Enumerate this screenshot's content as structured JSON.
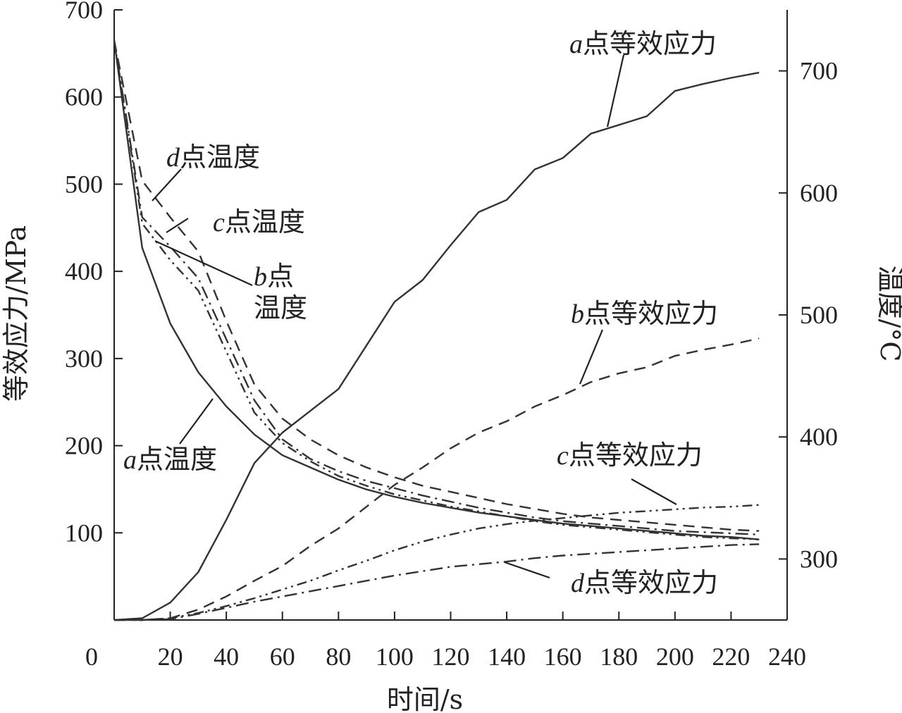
{
  "chart_data": {
    "type": "line",
    "xlabel": "时间/s",
    "ylabel_left": "等效应力/MPa",
    "ylabel_right": "温度/°C",
    "xlim": [
      0,
      240
    ],
    "ylim_left": [
      0,
      700
    ],
    "ylim_right": [
      250,
      750
    ],
    "x_ticks": [
      "0",
      "20",
      "40",
      "60",
      "80",
      "100",
      "120",
      "140",
      "160",
      "180",
      "200",
      "220",
      "240"
    ],
    "y_left_ticks": [
      "100",
      "200",
      "300",
      "400",
      "500",
      "600",
      "700"
    ],
    "y_right_ticks": [
      "300",
      "400",
      "500",
      "600",
      "700"
    ],
    "grid": false,
    "series": [
      {
        "name": "a点等效应力",
        "axis": "left",
        "style": "solid",
        "x": [
          0,
          10,
          20,
          30,
          40,
          50,
          60,
          70,
          80,
          90,
          100,
          110,
          120,
          130,
          140,
          150,
          160,
          170,
          180,
          190,
          200,
          210,
          220,
          230
        ],
        "y": [
          0,
          2,
          20,
          55,
          115,
          180,
          215,
          240,
          265,
          315,
          365,
          390,
          430,
          468,
          482,
          517,
          530,
          558,
          568,
          578,
          607,
          615,
          622,
          628
        ]
      },
      {
        "name": "b点等效应力",
        "axis": "left",
        "style": "dash",
        "x": [
          0,
          10,
          20,
          30,
          40,
          50,
          60,
          70,
          80,
          90,
          100,
          110,
          120,
          130,
          140,
          150,
          160,
          170,
          180,
          190,
          200,
          210,
          220,
          230
        ],
        "y": [
          0,
          0,
          2,
          12,
          27,
          45,
          62,
          85,
          105,
          130,
          155,
          175,
          197,
          215,
          228,
          245,
          258,
          273,
          283,
          290,
          303,
          310,
          316,
          323
        ]
      },
      {
        "name": "c点等效应力",
        "axis": "left",
        "style": "dot-dot-dash",
        "x": [
          0,
          10,
          20,
          30,
          40,
          50,
          60,
          70,
          80,
          90,
          100,
          110,
          120,
          130,
          140,
          150,
          160,
          170,
          180,
          190,
          200,
          210,
          220,
          230
        ],
        "y": [
          0,
          0,
          2,
          8,
          16,
          25,
          35,
          45,
          57,
          68,
          80,
          90,
          98,
          105,
          110,
          114,
          117,
          120,
          123,
          125,
          127,
          129,
          130,
          132
        ]
      },
      {
        "name": "d点等效应力",
        "axis": "left",
        "style": "dash-dot",
        "x": [
          0,
          10,
          20,
          30,
          40,
          50,
          60,
          70,
          80,
          90,
          100,
          110,
          120,
          130,
          140,
          150,
          160,
          170,
          180,
          190,
          200,
          210,
          220,
          230
        ],
        "y": [
          0,
          0,
          1,
          7,
          14,
          21,
          27,
          33,
          39,
          45,
          51,
          56,
          61,
          64,
          67,
          71,
          74,
          76,
          78,
          80,
          82,
          84,
          86,
          87
        ]
      },
      {
        "name": "a点温度",
        "axis": "right",
        "style": "solid",
        "x": [
          0,
          10,
          20,
          30,
          40,
          50,
          60,
          70,
          80,
          90,
          100,
          110,
          120,
          130,
          140,
          150,
          160,
          170,
          180,
          190,
          200,
          210,
          220,
          230
        ],
        "y": [
          725,
          555,
          493,
          453,
          425,
          402,
          385,
          375,
          365,
          357,
          351,
          346,
          342,
          338,
          335,
          332,
          329,
          327,
          325,
          323,
          321,
          319,
          318,
          316
        ]
      },
      {
        "name": "b点温度",
        "axis": "right",
        "style": "dot-dot-dash",
        "x": [
          0,
          10,
          20,
          30,
          40,
          50,
          60,
          70,
          80,
          90,
          100,
          110,
          120,
          130,
          140,
          150,
          160,
          170,
          180,
          190,
          200,
          210,
          220,
          230
        ],
        "y": [
          725,
          575,
          545,
          520,
          470,
          420,
          395,
          380,
          368,
          360,
          353,
          348,
          343,
          339,
          335,
          331,
          328,
          326,
          324,
          322,
          320,
          318,
          317,
          316
        ]
      },
      {
        "name": "c点温度",
        "axis": "right",
        "style": "dash-dot",
        "x": [
          0,
          10,
          20,
          30,
          40,
          50,
          60,
          70,
          80,
          90,
          100,
          110,
          120,
          130,
          140,
          150,
          160,
          170,
          180,
          190,
          200,
          210,
          220,
          230
        ],
        "y": [
          725,
          580,
          556,
          530,
          480,
          430,
          398,
          382,
          372,
          364,
          358,
          352,
          347,
          342,
          338,
          334,
          331,
          329,
          327,
          325,
          323,
          322,
          321,
          320
        ]
      },
      {
        "name": "d点温度",
        "axis": "right",
        "style": "dash",
        "x": [
          0,
          10,
          20,
          30,
          40,
          50,
          60,
          70,
          80,
          90,
          100,
          110,
          120,
          130,
          140,
          150,
          160,
          170,
          180,
          190,
          200,
          210,
          220,
          230
        ],
        "y": [
          725,
          610,
          580,
          552,
          495,
          443,
          415,
          398,
          385,
          375,
          367,
          360,
          355,
          350,
          345,
          341,
          337,
          334,
          332,
          330,
          328,
          326,
          324,
          323
        ]
      }
    ],
    "annotations": [
      {
        "label": "a点等效应力",
        "letter": "a",
        "text": "点等效应力"
      },
      {
        "label": "d点温度",
        "letter": "d",
        "text": "点温度"
      },
      {
        "label": "c点温度",
        "letter": "c",
        "text": "点温度"
      },
      {
        "label": "b点温度",
        "letter": "b",
        "text": "点",
        "text2": "温度"
      },
      {
        "label": "b点等效应力",
        "letter": "b",
        "text": "点等效应力"
      },
      {
        "label": "a点温度",
        "letter": "a",
        "text": "点温度"
      },
      {
        "label": "c点等效应力",
        "letter": "c",
        "text": "点等效应力"
      },
      {
        "label": "d点等效应力",
        "letter": "d",
        "text": "点等效应力"
      }
    ]
  }
}
